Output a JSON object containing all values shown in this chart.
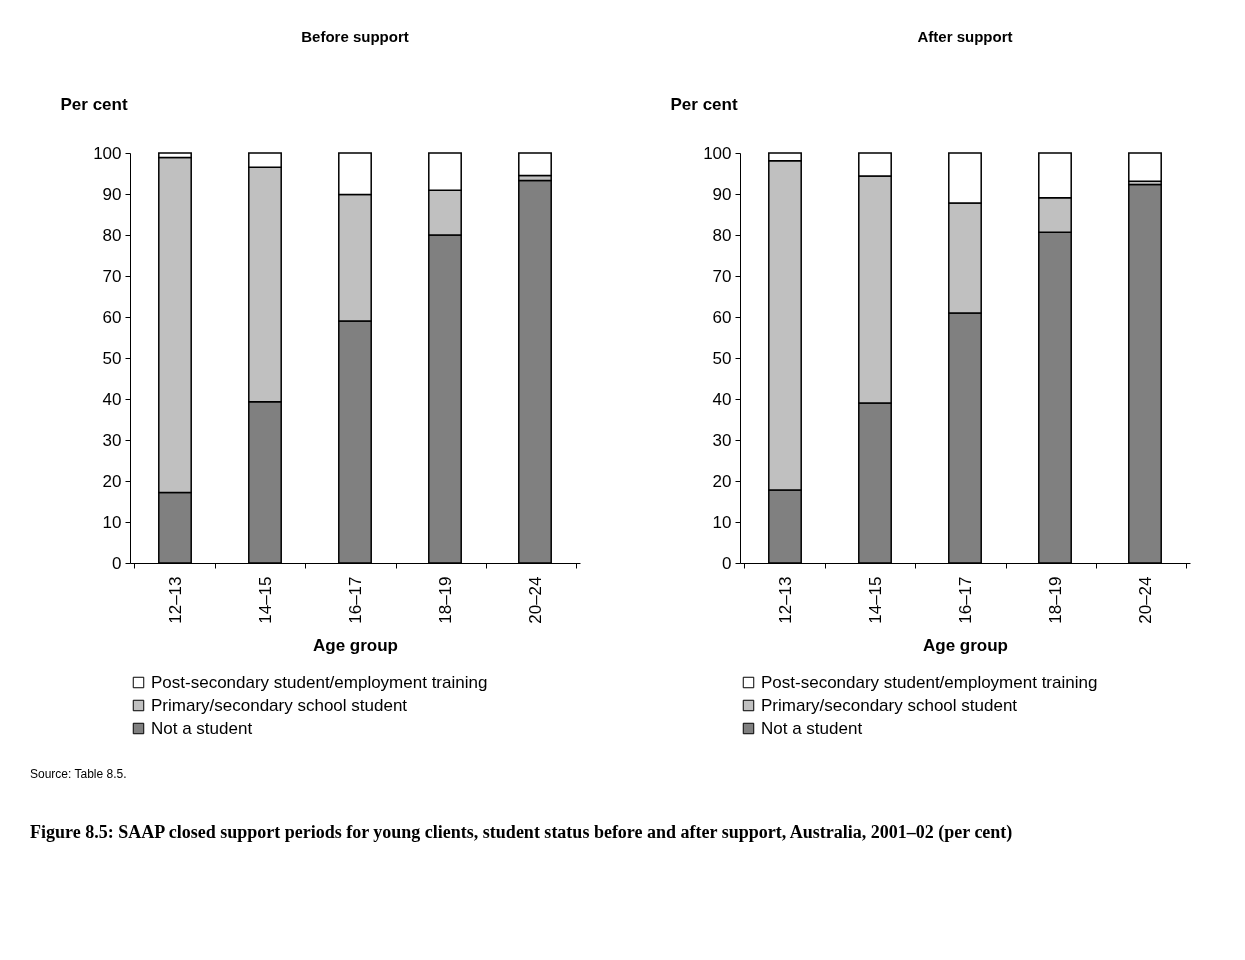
{
  "chart_data": [
    {
      "type": "bar",
      "title": "Before support",
      "xlabel": "Age group",
      "ylabel": "Per cent",
      "stacked": true,
      "legend": "bottom",
      "categories": [
        "12–13",
        "14–15",
        "16–17",
        "18–19",
        "20–24"
      ],
      "ylim": [
        0,
        100
      ],
      "yticks": [
        0,
        10,
        20,
        30,
        40,
        50,
        60,
        70,
        80,
        90,
        100
      ],
      "series": [
        {
          "name": "Not a student",
          "color": "#808080",
          "values": [
            17.2,
            39.3,
            59,
            80,
            93.3
          ]
        },
        {
          "name": "Primary/secondary school student",
          "color": "#c0c0c0",
          "values": [
            81.7,
            57.2,
            30.9,
            10.9,
            1.2
          ]
        },
        {
          "name": "Post-secondary student/employment training",
          "color": "#ffffff",
          "values": [
            1.1,
            3.5,
            10.1,
            9.1,
            5.5
          ]
        }
      ],
      "annotations": [
        "Source: Table 8.5.",
        "Figure 8.5: SAAP closed support periods for young clients, student status before and after support, Australia, 2001–02 (per cent)"
      ]
    },
    {
      "type": "bar",
      "title": "After support",
      "xlabel": "Age group",
      "ylabel": "Per cent",
      "stacked": true,
      "legend": "bottom",
      "categories": [
        "12–13",
        "14–15",
        "16–17",
        "18–19",
        "20–24"
      ],
      "ylim": [
        0,
        100
      ],
      "yticks": [
        0,
        10,
        20,
        30,
        40,
        50,
        60,
        70,
        80,
        90,
        100
      ],
      "series": [
        {
          "name": "Not a student",
          "color": "#808080",
          "values": [
            17.8,
            39,
            61,
            80.7,
            92.3
          ]
        },
        {
          "name": "Primary/secondary school student",
          "color": "#c0c0c0",
          "values": [
            80.3,
            55.4,
            26.8,
            8.4,
            0.8
          ]
        },
        {
          "name": "Post-secondary student/employment training",
          "color": "#ffffff",
          "values": [
            1.9,
            5.6,
            12.2,
            10.9,
            6.9
          ]
        }
      ]
    }
  ]
}
